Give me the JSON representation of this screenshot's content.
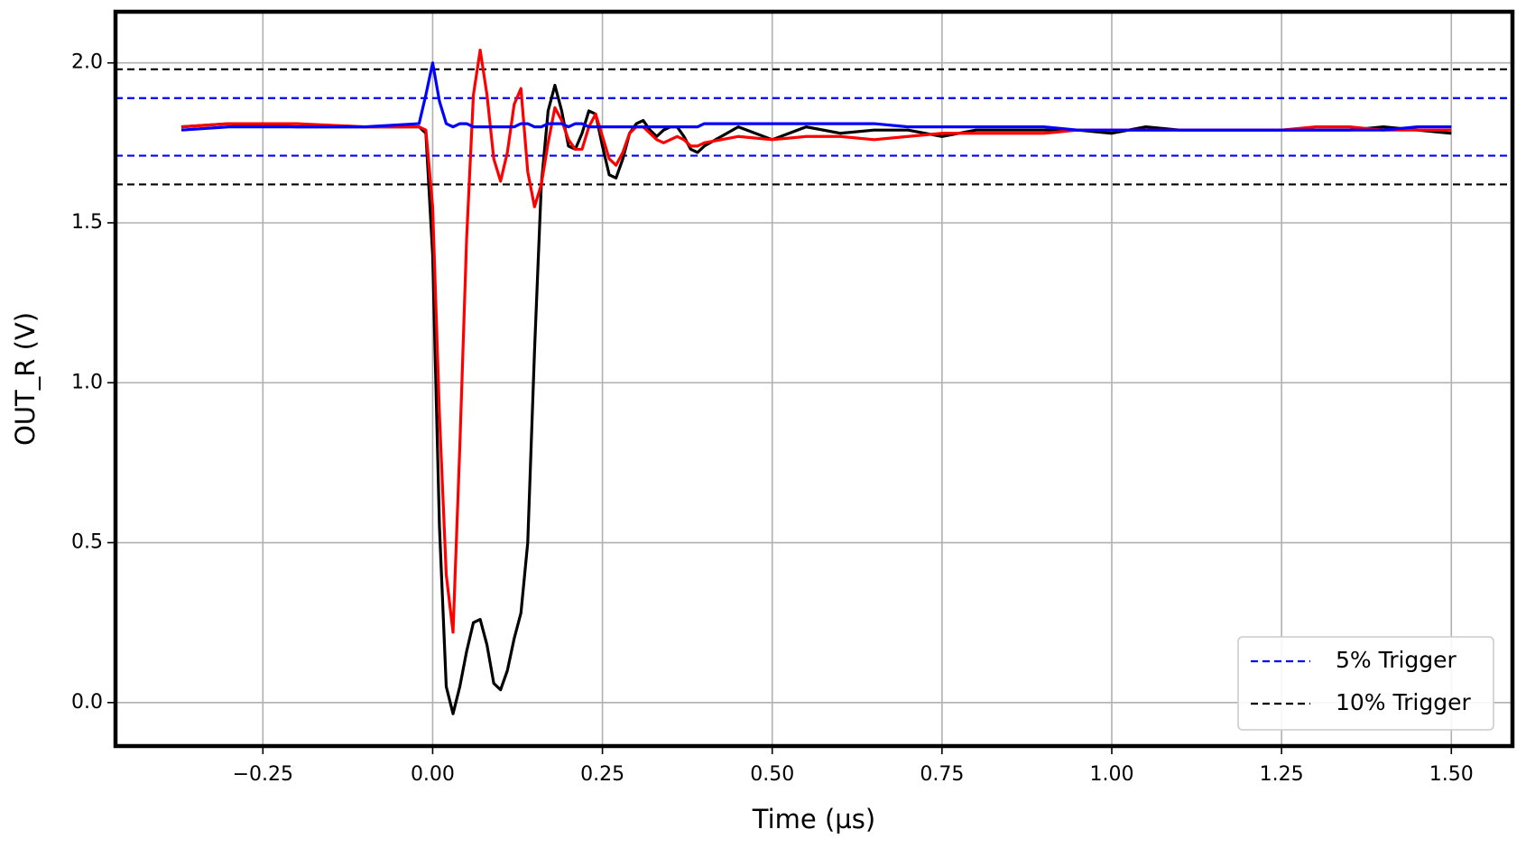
{
  "chart_data": {
    "type": "line",
    "x_label": "Time (µs)",
    "y_label": "OUT_R (V)",
    "xlim": [
      -0.467,
      1.59
    ],
    "ylim": [
      -0.136,
      2.16
    ],
    "xticks": [
      {
        "value": -0.25,
        "label": "−0.25"
      },
      {
        "value": 0,
        "label": "0.00"
      },
      {
        "value": 0.25,
        "label": "0.25"
      },
      {
        "value": 0.5,
        "label": "0.50"
      },
      {
        "value": 0.75,
        "label": "0.75"
      },
      {
        "value": 1,
        "label": "1.00"
      },
      {
        "value": 1.25,
        "label": "1.25"
      },
      {
        "value": 1.5,
        "label": "1.50"
      }
    ],
    "yticks": [
      {
        "value": 0,
        "label": "0.0"
      },
      0.5,
      {
        "value": 1,
        "label": "1.0"
      },
      1.5,
      {
        "value": 2,
        "label": "2.0"
      }
    ],
    "grid": true,
    "legend": "lower right",
    "x": [
      -0.37,
      -0.3,
      -0.2,
      -0.1,
      -0.02,
      -0.01,
      0,
      0.01,
      0.02,
      0.03,
      0.04,
      0.05,
      0.06,
      0.07,
      0.08,
      0.09,
      0.1,
      0.11,
      0.12,
      0.13,
      0.14,
      0.15,
      0.16,
      0.17,
      0.18,
      0.19,
      0.2,
      0.21,
      0.22,
      0.23,
      0.24,
      0.25,
      0.26,
      0.27,
      0.28,
      0.29,
      0.3,
      0.31,
      0.32,
      0.33,
      0.34,
      0.35,
      0.36,
      0.37,
      0.38,
      0.39,
      0.4,
      0.45,
      0.5,
      0.55,
      0.6,
      0.65,
      0.7,
      0.75,
      0.8,
      0.85,
      0.9,
      0.95,
      1,
      1.05,
      1.1,
      1.15,
      1.2,
      1.25,
      1.3,
      1.35,
      1.4,
      1.45,
      1.5
    ],
    "series": [
      {
        "color": "#000000",
        "values": [
          1.8,
          1.81,
          1.8,
          1.8,
          1.8,
          1.78,
          1.4,
          0.55,
          0.05,
          -0.035,
          0.05,
          0.16,
          0.25,
          0.26,
          0.18,
          0.06,
          0.04,
          0.1,
          0.2,
          0.28,
          0.5,
          1.1,
          1.62,
          1.85,
          1.93,
          1.85,
          1.74,
          1.73,
          1.78,
          1.85,
          1.84,
          1.74,
          1.65,
          1.64,
          1.7,
          1.78,
          1.81,
          1.82,
          1.79,
          1.77,
          1.79,
          1.8,
          1.8,
          1.77,
          1.73,
          1.72,
          1.74,
          1.8,
          1.76,
          1.8,
          1.78,
          1.79,
          1.79,
          1.77,
          1.79,
          1.79,
          1.79,
          1.79,
          1.78,
          1.8,
          1.79,
          1.79,
          1.79,
          1.79,
          1.79,
          1.79,
          1.8,
          1.79,
          1.78
        ]
      },
      {
        "color": "#ff0000",
        "values": [
          1.8,
          1.81,
          1.81,
          1.8,
          1.8,
          1.79,
          1.55,
          0.9,
          0.4,
          0.22,
          0.8,
          1.45,
          1.9,
          2.04,
          1.9,
          1.7,
          1.63,
          1.72,
          1.87,
          1.92,
          1.66,
          1.55,
          1.62,
          1.75,
          1.86,
          1.82,
          1.76,
          1.73,
          1.73,
          1.8,
          1.84,
          1.77,
          1.7,
          1.68,
          1.72,
          1.78,
          1.8,
          1.8,
          1.78,
          1.76,
          1.75,
          1.76,
          1.77,
          1.76,
          1.74,
          1.74,
          1.75,
          1.77,
          1.76,
          1.77,
          1.77,
          1.76,
          1.77,
          1.78,
          1.78,
          1.78,
          1.78,
          1.79,
          1.79,
          1.79,
          1.79,
          1.79,
          1.79,
          1.79,
          1.8,
          1.8,
          1.79,
          1.79,
          1.79
        ]
      },
      {
        "color": "#0000ff",
        "values": [
          1.79,
          1.8,
          1.8,
          1.8,
          1.81,
          1.9,
          2.0,
          1.88,
          1.81,
          1.8,
          1.81,
          1.81,
          1.8,
          1.8,
          1.8,
          1.8,
          1.8,
          1.8,
          1.8,
          1.81,
          1.81,
          1.8,
          1.8,
          1.81,
          1.81,
          1.81,
          1.8,
          1.81,
          1.81,
          1.8,
          1.8,
          1.8,
          1.8,
          1.8,
          1.8,
          1.8,
          1.8,
          1.8,
          1.8,
          1.8,
          1.8,
          1.8,
          1.8,
          1.8,
          1.8,
          1.8,
          1.81,
          1.81,
          1.81,
          1.81,
          1.81,
          1.81,
          1.8,
          1.8,
          1.8,
          1.8,
          1.8,
          1.79,
          1.79,
          1.79,
          1.79,
          1.79,
          1.79,
          1.79,
          1.79,
          1.79,
          1.79,
          1.8,
          1.8
        ]
      }
    ],
    "reference_lines": [
      {
        "name": "5% Trigger",
        "color": "#0000ff",
        "values": [
          1.89,
          1.71
        ]
      },
      {
        "name": "10% Trigger",
        "color": "#000000",
        "values": [
          1.98,
          1.62
        ]
      }
    ]
  }
}
